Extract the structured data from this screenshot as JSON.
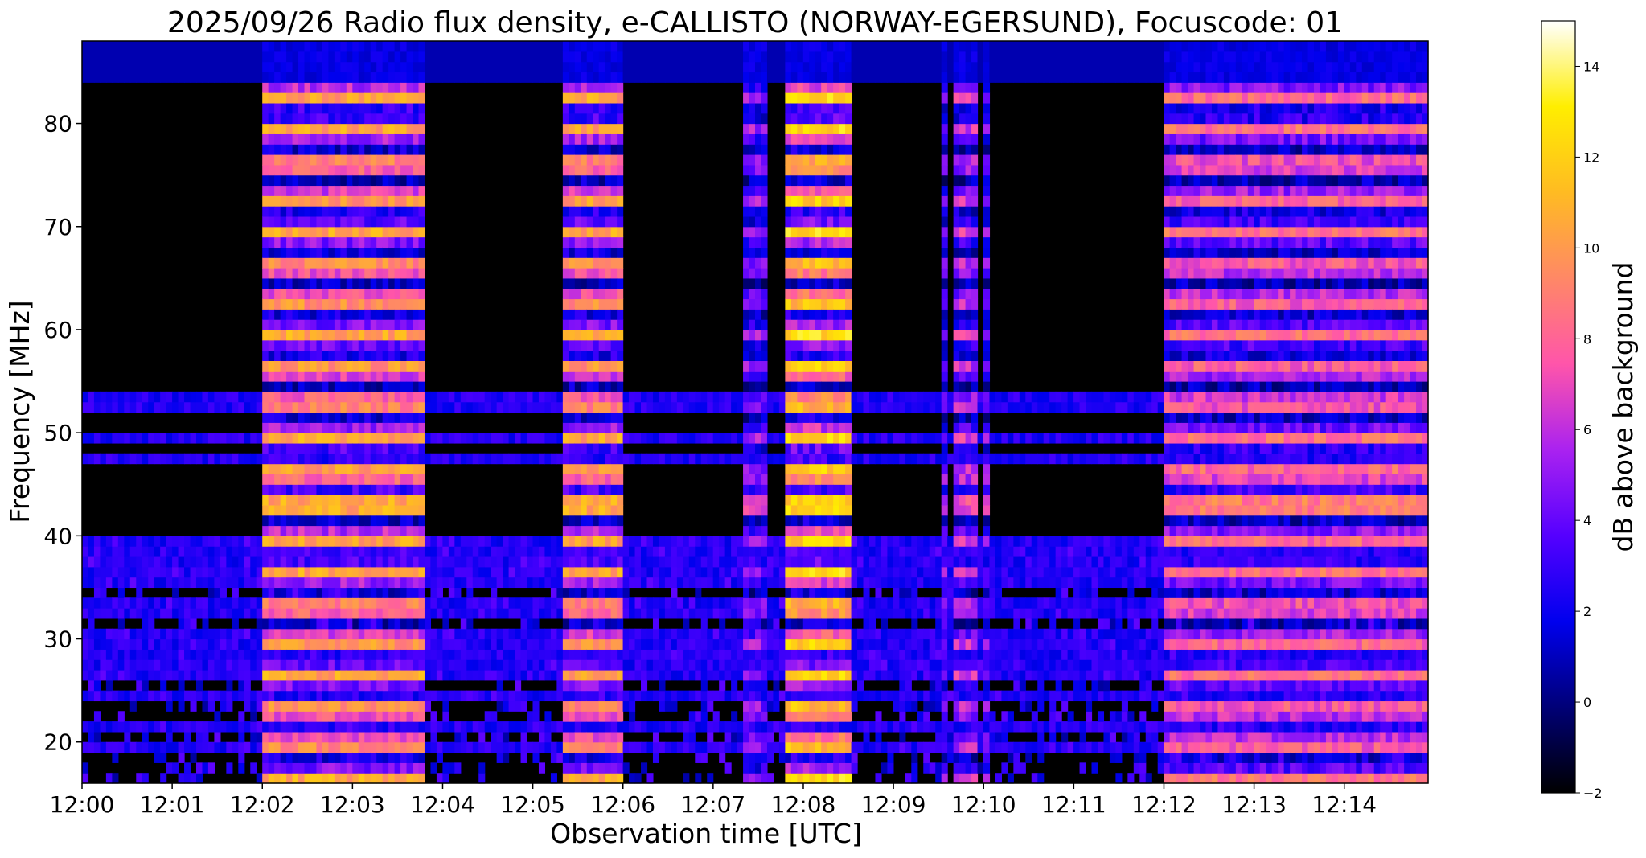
{
  "chart_data": {
    "type": "heatmap",
    "title": "2025/09/26  Radio flux density, e-CALLISTO (NORWAY-EGERSUND), Focuscode: 01",
    "xlabel": "Observation time [UTC]",
    "ylabel": "Frequency [MHz]",
    "x_tick_labels": [
      "12:00",
      "12:01",
      "12:02",
      "12:03",
      "12:04",
      "12:05",
      "12:06",
      "12:07",
      "12:08",
      "12:09",
      "12:10",
      "12:11",
      "12:12",
      "12:13",
      "12:14"
    ],
    "x_tick_minutes": [
      0,
      1,
      2,
      3,
      4,
      5,
      6,
      7,
      8,
      9,
      10,
      11,
      12,
      13,
      14
    ],
    "xlim_minutes": [
      0,
      14.93
    ],
    "y_ticks": [
      20,
      30,
      40,
      50,
      60,
      70,
      80
    ],
    "ylim": [
      16,
      88
    ],
    "colorbar": {
      "label": "dB above background",
      "ticks": [
        -2,
        0,
        2,
        4,
        6,
        8,
        10,
        12,
        14
      ],
      "range": [
        -2,
        15
      ],
      "colormap": "gnuplot2",
      "colors": [
        "#000000",
        "#000077",
        "#0000ee",
        "#5500ff",
        "#aa22f0",
        "#ff55aa",
        "#ff8866",
        "#ffbb22",
        "#ffee00",
        "#ffffff"
      ]
    },
    "bursts": [
      {
        "start": 2.0,
        "end": 3.83,
        "level": 10.5
      },
      {
        "start": 5.33,
        "end": 5.97,
        "level": 10.5
      },
      {
        "start": 7.33,
        "end": 7.5,
        "level": 5.5
      },
      {
        "start": 7.53,
        "end": 7.63,
        "level": 5.0
      },
      {
        "start": 7.8,
        "end": 8.55,
        "level": 12.5
      },
      {
        "start": 9.5,
        "end": 9.6,
        "level": 5.0
      },
      {
        "start": 9.68,
        "end": 9.92,
        "level": 6.5
      },
      {
        "start": 9.98,
        "end": 10.05,
        "level": 5.0
      },
      {
        "start": 12.0,
        "end": 14.93,
        "level": 8.5
      }
    ],
    "interference_bands_mhz": [
      19.5,
      21.5,
      24.5,
      26.5,
      28.0,
      30.0,
      33.0,
      35.5,
      37.0,
      39.0,
      47.5,
      49.5,
      53.0
    ]
  }
}
